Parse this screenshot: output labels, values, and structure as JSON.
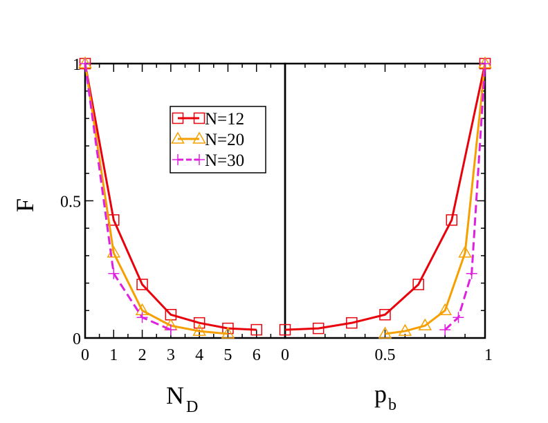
{
  "chart_data": [
    {
      "type": "line",
      "panel": "left",
      "xlabel": "N",
      "xlabel_sub": "D",
      "ylabel": "F",
      "xlim": [
        0,
        7
      ],
      "ylim": [
        0,
        1
      ],
      "xticks": [
        "0",
        "1",
        "2",
        "3",
        "4",
        "5",
        "6"
      ],
      "yticks": [
        "0",
        "0.5",
        "1"
      ],
      "legend": {
        "position": "upper-center",
        "entries": [
          "N=12",
          "N=20",
          "N=30"
        ]
      },
      "series": [
        {
          "name": "N=12",
          "color": "#e8000b",
          "marker": "square",
          "dashed": false,
          "x": [
            0,
            1,
            2,
            3,
            4,
            5,
            6
          ],
          "y": [
            1.0,
            0.43,
            0.195,
            0.085,
            0.055,
            0.035,
            0.03
          ]
        },
        {
          "name": "N=20",
          "color": "#f5a000",
          "marker": "triangle",
          "dashed": false,
          "x": [
            0,
            1,
            2,
            3,
            4,
            5
          ],
          "y": [
            1.0,
            0.31,
            0.1,
            0.045,
            0.025,
            0.015
          ]
        },
        {
          "name": "N=30",
          "color": "#e020e0",
          "marker": "plus",
          "dashed": true,
          "x": [
            0,
            1,
            2,
            3
          ],
          "y": [
            1.0,
            0.235,
            0.075,
            0.03
          ]
        }
      ]
    },
    {
      "type": "line",
      "panel": "right",
      "xlabel": "p",
      "xlabel_sub": "b",
      "xlim": [
        0,
        1
      ],
      "ylim": [
        0,
        1
      ],
      "xticks": [
        "0",
        "0.5",
        "1"
      ],
      "series": [
        {
          "name": "N=12",
          "color": "#e8000b",
          "marker": "square",
          "dashed": false,
          "x": [
            0.0,
            0.1667,
            0.3333,
            0.5,
            0.6667,
            0.8333,
            1.0
          ],
          "y": [
            0.03,
            0.035,
            0.055,
            0.085,
            0.195,
            0.43,
            1.0
          ]
        },
        {
          "name": "N=20",
          "color": "#f5a000",
          "marker": "triangle",
          "dashed": false,
          "x": [
            0.5,
            0.6,
            0.7,
            0.8,
            0.9,
            1.0
          ],
          "y": [
            0.015,
            0.025,
            0.045,
            0.1,
            0.31,
            1.0
          ]
        },
        {
          "name": "N=30",
          "color": "#e020e0",
          "marker": "plus",
          "dashed": true,
          "x": [
            0.8,
            0.8667,
            0.9333,
            1.0
          ],
          "y": [
            0.03,
            0.075,
            0.235,
            1.0
          ]
        }
      ]
    }
  ]
}
